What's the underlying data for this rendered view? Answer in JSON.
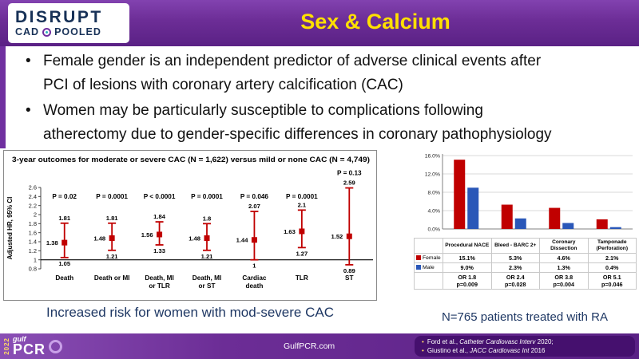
{
  "header": {
    "title": "Sex & Calcium",
    "logo": {
      "line1": "DISRUPT",
      "line2a": "CAD",
      "line2b": "POOLED"
    }
  },
  "bullets": [
    {
      "lines": [
        "Female gender is an independent predictor of adverse clinical events after",
        "PCI of lesions with coronary artery calcification (CAC)"
      ]
    },
    {
      "lines": [
        "Women may be particularly susceptible to complications following",
        "atherectomy due to gender-specific differences in coronary pathophysiology"
      ]
    }
  ],
  "captions": {
    "left": "Increased risk for women with mod-severe CAC",
    "right": "N=765 patients treated with RA"
  },
  "footer": {
    "website": "GulfPCR.com",
    "logo": {
      "year": "2022",
      "gulf": "gulf",
      "pcr": "PCR"
    },
    "references": [
      {
        "prefix": "Ford et al., ",
        "journal": "Catheter Cardiovasc Interv",
        "suffix": " 2020;"
      },
      {
        "prefix": "Giustino et al., ",
        "journal": "JACC Cardiovasc Int",
        "suffix": " 2016"
      }
    ]
  },
  "colors": {
    "header_purple": "#6C2D96",
    "title_yellow": "#FFE000",
    "caption_blue": "#1F3864",
    "female_red": "#C00000",
    "male_blue": "#2A57B8"
  },
  "chart_data": [
    {
      "type": "scatter",
      "subtype": "forest-plot",
      "title": "3-year outcomes for moderate or severe CAC (N = 1,622) versus mild or none CAC (N = 4,749)",
      "ylabel": "Adjusted HR, 95% CI",
      "ylim": [
        0.8,
        2.6
      ],
      "yticks": [
        0.8,
        1,
        1.2,
        1.4,
        1.6,
        1.8,
        2,
        2.2,
        2.4,
        2.6
      ],
      "reference_line": 1,
      "marker_color": "#C00000",
      "grid": false,
      "points": [
        {
          "label_lines": [
            "Death"
          ],
          "hr": "1.38",
          "low": "1.05",
          "high": "1.81",
          "p": "P = 0.02"
        },
        {
          "label_lines": [
            "Death or MI"
          ],
          "hr": "1.48",
          "low": "1.21",
          "high": "1.81",
          "p": "P = 0.0001"
        },
        {
          "label_lines": [
            "Death, MI",
            "or TLR"
          ],
          "hr": "1.56",
          "low": "1.33",
          "high": "1.84",
          "p": "P < 0.0001"
        },
        {
          "label_lines": [
            "Death, MI",
            "or ST"
          ],
          "hr": "1.48",
          "low": "1.21",
          "high": "1.8",
          "p": "P = 0.0001"
        },
        {
          "label_lines": [
            "Cardiac",
            "death"
          ],
          "hr": "1.44",
          "low": "1",
          "high": "2.07",
          "p": "P = 0.046"
        },
        {
          "label_lines": [
            "TLR"
          ],
          "hr": "1.63",
          "low": "1.27",
          "high": "2.1",
          "p": "P = 0.0001"
        },
        {
          "label_lines": [
            "ST"
          ],
          "hr": "1.52",
          "low": "0.89",
          "high": "2.59",
          "p": "P = 0.13"
        }
      ]
    },
    {
      "type": "bar",
      "categories": [
        "Procedural NACE",
        "Bleed - BARC 2+",
        "Coronary Dissection",
        "Tamponade (Perforation)"
      ],
      "series": [
        {
          "name": "Female",
          "color": "#C00000",
          "values": [
            15.1,
            5.3,
            4.6,
            2.1
          ]
        },
        {
          "name": "Male",
          "color": "#2A57B8",
          "values": [
            9.0,
            2.3,
            1.3,
            0.4
          ]
        }
      ],
      "or_rows": [
        [
          "OR 1.8",
          "p=0.009"
        ],
        [
          "OR 2.4",
          "p=0.028"
        ],
        [
          "OR 3.8",
          "p=0.004"
        ],
        [
          "OR 5.1",
          "p=0.046"
        ]
      ],
      "ylim": [
        0,
        16
      ],
      "yticks": [
        16,
        12,
        8,
        4,
        0
      ],
      "grid": true,
      "legend_position": "table-left"
    }
  ]
}
